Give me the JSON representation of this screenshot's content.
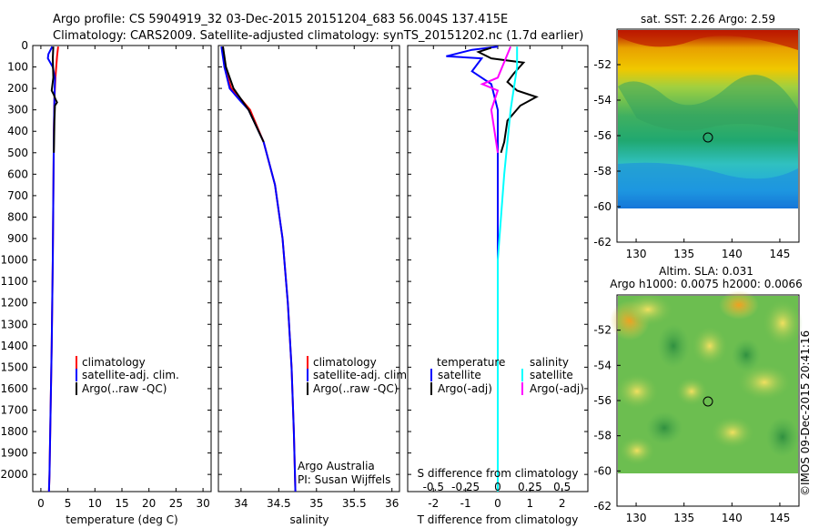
{
  "header": {
    "line1": "Argo profile: CS 5904919_32 03-Dec-2015 20151204_683 56.004S 137.415E",
    "line2": "Climatology: CARS2009. Satellite-adjusted climatology: synTS_20151202.nc (1.7d earlier)"
  },
  "chart_data": [
    {
      "type": "line",
      "name": "temperature-profile",
      "xlabel": "temperature (deg C)",
      "ylabel": "",
      "xlim": [
        -1.5,
        31.5
      ],
      "ylim": [
        0,
        2080
      ],
      "xticks": [
        0,
        5,
        10,
        15,
        20,
        25,
        30
      ],
      "yticks": [
        0,
        100,
        200,
        300,
        400,
        500,
        600,
        700,
        800,
        900,
        1000,
        1100,
        1200,
        1300,
        1400,
        1500,
        1600,
        1700,
        1800,
        1900,
        2000
      ],
      "legend": [
        "climatology",
        "satellite-adj. clim.",
        "Argo(..raw -QC)"
      ],
      "series": [
        {
          "name": "climatology",
          "color": "#ff0000",
          "points": [
            [
              3.2,
              5
            ],
            [
              3.0,
              50
            ],
            [
              2.7,
              150
            ],
            [
              2.5,
              250
            ],
            [
              2.4,
              400
            ],
            [
              2.3,
              700
            ],
            [
              2.2,
              1000
            ],
            [
              2.0,
              1400
            ],
            [
              1.6,
              2000
            ],
            [
              1.5,
              2080
            ]
          ]
        },
        {
          "name": "satellite-adj. clim.",
          "color": "#0000ff",
          "points": [
            [
              2.1,
              5
            ],
            [
              1.4,
              40
            ],
            [
              1.3,
              60
            ],
            [
              2.2,
              100
            ],
            [
              2.6,
              150
            ],
            [
              2.5,
              250
            ],
            [
              2.4,
              400
            ],
            [
              2.3,
              700
            ],
            [
              2.2,
              1000
            ],
            [
              2.0,
              1400
            ],
            [
              1.6,
              2000
            ],
            [
              1.5,
              2080
            ]
          ]
        },
        {
          "name": "Argo(..raw -QC)",
          "color": "#000000",
          "points": [
            [
              2.3,
              5
            ],
            [
              2.2,
              60
            ],
            [
              2.3,
              150
            ],
            [
              2.0,
              210
            ],
            [
              2.4,
              230
            ],
            [
              2.7,
              250
            ],
            [
              3.0,
              265
            ],
            [
              2.6,
              280
            ],
            [
              2.5,
              350
            ],
            [
              2.4,
              500
            ]
          ]
        }
      ]
    },
    {
      "type": "line",
      "name": "salinity-profile",
      "xlabel": "salinity",
      "xlim": [
        33.7,
        36.1
      ],
      "ylim": [
        0,
        2080
      ],
      "xticks": [
        34,
        34.5,
        35,
        35.5,
        36
      ],
      "legend": [
        "climatology",
        "satellite-adj. clim.",
        "Argo(..raw -QC)"
      ],
      "annotation": [
        "Argo Australia",
        "PI: Susan Wijffels"
      ],
      "series": [
        {
          "name": "climatology",
          "color": "#ff0000",
          "points": [
            [
              33.76,
              5
            ],
            [
              33.78,
              100
            ],
            [
              33.87,
              200
            ],
            [
              34.0,
              250
            ],
            [
              34.12,
              300
            ],
            [
              34.3,
              450
            ],
            [
              34.45,
              650
            ],
            [
              34.55,
              900
            ],
            [
              34.62,
              1200
            ],
            [
              34.67,
              1500
            ],
            [
              34.7,
              1800
            ],
            [
              34.72,
              2080
            ]
          ]
        },
        {
          "name": "satellite-adj. clim.",
          "color": "#0000ff",
          "points": [
            [
              33.74,
              5
            ],
            [
              33.78,
              100
            ],
            [
              33.85,
              200
            ],
            [
              33.97,
              250
            ],
            [
              34.1,
              300
            ],
            [
              34.3,
              450
            ],
            [
              34.45,
              650
            ],
            [
              34.55,
              900
            ],
            [
              34.62,
              1200
            ],
            [
              34.67,
              1500
            ],
            [
              34.7,
              1800
            ],
            [
              34.72,
              2080
            ]
          ]
        },
        {
          "name": "Argo(..raw -QC)",
          "color": "#000000",
          "points": [
            [
              33.76,
              5
            ],
            [
              33.8,
              100
            ],
            [
              33.9,
              200
            ],
            [
              34.0,
              250
            ],
            [
              34.1,
              300
            ],
            [
              34.3,
              450
            ]
          ]
        }
      ]
    },
    {
      "type": "line",
      "name": "difference-profile",
      "xlabel": "T difference from climatology",
      "xlabel_top": "S difference from climatology",
      "xlim": [
        -2.8,
        2.8
      ],
      "ylim": [
        0,
        2080
      ],
      "xticks": [
        -2,
        -1,
        0,
        1,
        2
      ],
      "xticks_top": [
        "-0.5",
        "-0.25",
        "0",
        "0.25",
        "0.5"
      ],
      "legend_temperature_title": "temperature",
      "legend_salinity_title": "salinity",
      "legend_temperature": [
        "satellite",
        "Argo(-adj)"
      ],
      "legend_salinity": [
        "satellite",
        "Argo(-adj)"
      ],
      "series": [
        {
          "name": "T satellite",
          "color": "#0000ff",
          "points": [
            [
              0,
              5
            ],
            [
              -0.8,
              20
            ],
            [
              -1.6,
              50
            ],
            [
              -0.5,
              60
            ],
            [
              -0.8,
              120
            ],
            [
              -0.2,
              180
            ],
            [
              0,
              300
            ],
            [
              0,
              600
            ],
            [
              0,
              1000
            ]
          ]
        },
        {
          "name": "T Argo(-adj)",
          "color": "#000000",
          "points": [
            [
              -0.2,
              10
            ],
            [
              -0.6,
              30
            ],
            [
              -0.2,
              60
            ],
            [
              0.8,
              80
            ],
            [
              0.5,
              130
            ],
            [
              0.3,
              170
            ],
            [
              0.6,
              210
            ],
            [
              1.2,
              240
            ],
            [
              0.7,
              280
            ],
            [
              0.3,
              350
            ],
            [
              0.2,
              450
            ],
            [
              0.1,
              500
            ]
          ]
        },
        {
          "name": "S satellite",
          "color": "#00ffff",
          "points": [
            [
              0.15,
              5
            ],
            [
              0.15,
              100
            ],
            [
              0.1,
              300
            ],
            [
              0.05,
              600
            ],
            [
              0.0,
              1000
            ],
            [
              0.0,
              2080
            ]
          ]
        },
        {
          "name": "S Argo(-adj)",
          "color": "#ff00ff",
          "points": [
            [
              0.1,
              5
            ],
            [
              0.0,
              150
            ],
            [
              -0.12,
              180
            ],
            [
              0.0,
              210
            ],
            [
              -0.05,
              300
            ],
            [
              0.0,
              500
            ]
          ]
        }
      ]
    },
    {
      "type": "heatmap",
      "name": "sst-map",
      "title": "sat. SST: 2.26 Argo: 2.59",
      "xlim": [
        128,
        147
      ],
      "ylim": [
        -62,
        -50
      ],
      "xticks": [
        130,
        135,
        140,
        145
      ],
      "yticks": [
        -52,
        -54,
        -56,
        -58,
        -60,
        -62
      ],
      "marker": [
        137.415,
        -56.004
      ]
    },
    {
      "type": "heatmap",
      "name": "sla-map",
      "title_line1": "Altim. SLA: 0.031",
      "title_line2": "Argo h1000: 0.0075 h2000: 0.0066",
      "xlim": [
        128,
        147
      ],
      "ylim": [
        -62,
        -50
      ],
      "xticks": [
        130,
        135,
        140,
        145
      ],
      "yticks": [
        -52,
        -54,
        -56,
        -58,
        -60,
        -62
      ],
      "marker": [
        137.415,
        -56.004
      ]
    }
  ],
  "footer": {
    "stamp": "©IMOS 09-Dec-2015 20:41:16"
  },
  "colors": {
    "climatology": "#ff0000",
    "satellite": "#0000ff",
    "argo": "#000000",
    "s_satellite": "#00ffff",
    "s_argo": "#ff00ff"
  }
}
